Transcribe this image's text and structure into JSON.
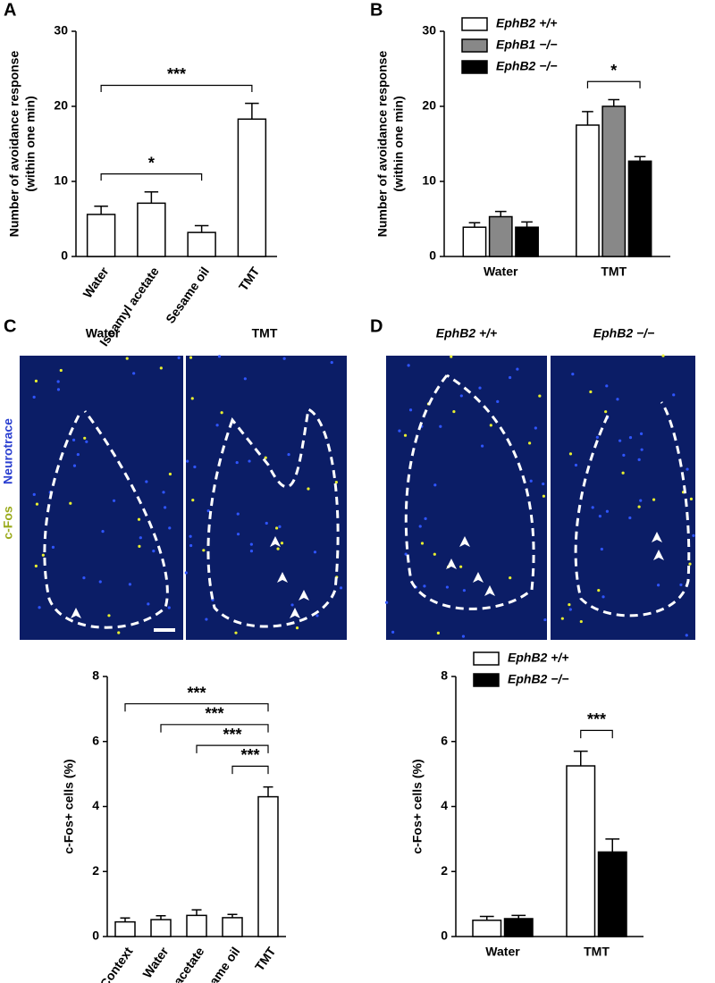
{
  "panels": [
    "A",
    "B",
    "C",
    "D"
  ],
  "images": {
    "C": {
      "labels": [
        "Water",
        "TMT"
      ]
    },
    "D": {
      "labels": [
        "EphB2 +/+",
        "EphB2 −/−"
      ]
    },
    "stain": [
      "c-Fos",
      "Neurotrace"
    ]
  },
  "chart_data": [
    {
      "type": "bar",
      "ylabel": [
        "Number of avoidance response",
        "(within one min)"
      ],
      "categories": [
        "Water",
        "Isoamyl acetate",
        "Sesame oil",
        "TMT"
      ],
      "values": [
        5.6,
        7.1,
        3.2,
        18.3
      ],
      "errors": [
        1.1,
        1.5,
        0.9,
        2.1
      ],
      "color": "#ffffff",
      "ylim": [
        0,
        30
      ],
      "yticks": [
        0,
        10,
        20,
        30
      ],
      "annotations": [
        {
          "between": [
            0,
            3
          ],
          "text": "***"
        },
        {
          "between": [
            0,
            2
          ],
          "text": "*"
        }
      ]
    },
    {
      "type": "grouped-bar",
      "ylabel": [
        "Number of avoidance response",
        "(within one min)"
      ],
      "categories": [
        "Water",
        "TMT"
      ],
      "series": [
        {
          "name": "EphB2 +/+",
          "color": "#ffffff",
          "values": [
            3.9,
            17.5
          ],
          "errors": [
            0.6,
            1.8
          ]
        },
        {
          "name": "EphB1 −/−",
          "color": "#888888",
          "values": [
            5.3,
            20.0
          ],
          "errors": [
            0.7,
            0.9
          ]
        },
        {
          "name": "EphB2 −/−",
          "color": "#000000",
          "values": [
            3.9,
            12.7
          ],
          "errors": [
            0.7,
            0.6
          ]
        }
      ],
      "legend": "upper left",
      "ylim": [
        0,
        30
      ],
      "yticks": [
        0,
        10,
        20,
        30
      ],
      "annotations": [
        {
          "group": 1,
          "between": [
            0,
            2
          ],
          "text": "*"
        }
      ]
    },
    {
      "type": "bar",
      "ylabel": [
        "c-Fos+ cells (%)"
      ],
      "categories": [
        "Context",
        "Water",
        "Isoamyl acetate",
        "Sesame oil",
        "TMT"
      ],
      "values": [
        0.45,
        0.52,
        0.65,
        0.58,
        4.3
      ],
      "errors": [
        0.12,
        0.12,
        0.17,
        0.1,
        0.3
      ],
      "color": "#ffffff",
      "ylim": [
        0,
        8
      ],
      "yticks": [
        0,
        2,
        4,
        6,
        8
      ],
      "annotations": [
        {
          "between": [
            0,
            4
          ],
          "text": "***"
        },
        {
          "between": [
            1,
            4
          ],
          "text": "***"
        },
        {
          "between": [
            2,
            4
          ],
          "text": "***"
        },
        {
          "between": [
            3,
            4
          ],
          "text": "***"
        }
      ]
    },
    {
      "type": "grouped-bar",
      "ylabel": [
        "c-Fos+ cells (%)"
      ],
      "categories": [
        "Water",
        "TMT"
      ],
      "series": [
        {
          "name": "EphB2 +/+",
          "color": "#ffffff",
          "values": [
            0.5,
            5.25
          ],
          "errors": [
            0.12,
            0.45
          ]
        },
        {
          "name": "EphB2 −/−",
          "color": "#000000",
          "values": [
            0.55,
            2.6
          ],
          "errors": [
            0.1,
            0.4
          ]
        }
      ],
      "legend": "upper left",
      "ylim": [
        0,
        8
      ],
      "yticks": [
        0,
        2,
        4,
        6,
        8
      ],
      "annotations": [
        {
          "group": 1,
          "between": [
            0,
            1
          ],
          "text": "***"
        }
      ]
    }
  ]
}
